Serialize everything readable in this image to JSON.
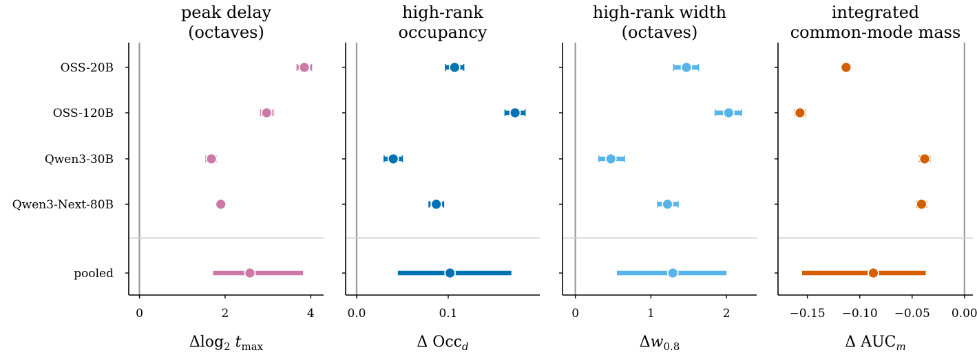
{
  "chart_data": [
    {
      "type": "scatter",
      "title": [
        "peak delay",
        "(octaves)"
      ],
      "xlabel": "Δlog₂ tₘₐₓ",
      "xlabel_parts": {
        "pre": "Δlog",
        "sub": "2",
        "var": "t",
        "sub2": "max"
      },
      "color": "#cc79a7",
      "xlim": [
        -0.25,
        4.3
      ],
      "xticks": [
        0,
        2,
        4
      ],
      "xtick_labels": [
        "0",
        "2",
        "4"
      ],
      "categories": [
        "OSS-20B",
        "OSS-120B",
        "Qwen3-30B",
        "Qwen3-Next-80B",
        "pooled"
      ],
      "values": [
        3.85,
        2.97,
        1.68,
        1.9,
        2.58
      ],
      "ci": [
        [
          3.68,
          4.02
        ],
        [
          2.83,
          3.12
        ],
        [
          1.55,
          1.8
        ],
        [
          1.87,
          1.95
        ],
        [
          1.72,
          3.82
        ]
      ]
    },
    {
      "type": "scatter",
      "title": [
        "high-rank",
        "occupancy"
      ],
      "xlabel": "Δ Occ_d",
      "xlabel_parts": {
        "pre": "Δ Occ",
        "sub": "d"
      },
      "color": "#0072b2",
      "xlim": [
        -0.012,
        0.2
      ],
      "xticks": [
        0.0,
        0.1
      ],
      "xtick_labels": [
        "0.0",
        "0.1"
      ],
      "categories": [
        "OSS-20B",
        "OSS-120B",
        "Qwen3-30B",
        "Qwen3-Next-80B",
        "pooled"
      ],
      "values": [
        0.107,
        0.173,
        0.04,
        0.087,
        0.102
      ],
      "ci": [
        [
          0.097,
          0.117
        ],
        [
          0.162,
          0.184
        ],
        [
          0.03,
          0.05
        ],
        [
          0.079,
          0.095
        ],
        [
          0.045,
          0.169
        ]
      ]
    },
    {
      "type": "scatter",
      "title": [
        "high-rank width",
        "(octaves)"
      ],
      "xlabel": "Δw_0.8",
      "xlabel_parts": {
        "pre": "Δ",
        "var": "w",
        "sub": "0.8"
      },
      "color": "#56b4e9",
      "xlim": [
        -0.17,
        2.4
      ],
      "xticks": [
        0,
        1,
        2
      ],
      "xtick_labels": [
        "0",
        "1",
        "2"
      ],
      "categories": [
        "OSS-20B",
        "OSS-120B",
        "Qwen3-30B",
        "Qwen3-Next-80B",
        "pooled"
      ],
      "values": [
        1.47,
        2.03,
        0.47,
        1.22,
        1.29
      ],
      "ci": [
        [
          1.3,
          1.63
        ],
        [
          1.85,
          2.2
        ],
        [
          0.31,
          0.65
        ],
        [
          1.09,
          1.36
        ],
        [
          0.55,
          2.0
        ]
      ]
    },
    {
      "type": "scatter",
      "title": [
        "integrated",
        "common-mode mass"
      ],
      "xlabel": "Δ AUC_m",
      "xlabel_parts": {
        "pre": "Δ AUC",
        "sub": "m"
      },
      "color": "#d55e00",
      "xlim": [
        -0.178,
        0.008
      ],
      "xticks": [
        -0.15,
        -0.1,
        -0.05,
        0.0
      ],
      "xtick_labels": [
        "−0.15",
        "−0.10",
        "−0.05",
        "0.00"
      ],
      "categories": [
        "OSS-20B",
        "OSS-120B",
        "Qwen3-30B",
        "Qwen3-Next-80B",
        "pooled"
      ],
      "values": [
        -0.113,
        -0.157,
        -0.038,
        -0.041,
        -0.087
      ],
      "ci": [
        [
          -0.117,
          -0.109
        ],
        [
          -0.162,
          -0.152
        ],
        [
          -0.043,
          -0.033
        ],
        [
          -0.046,
          -0.036
        ],
        [
          -0.155,
          -0.037
        ]
      ]
    }
  ]
}
